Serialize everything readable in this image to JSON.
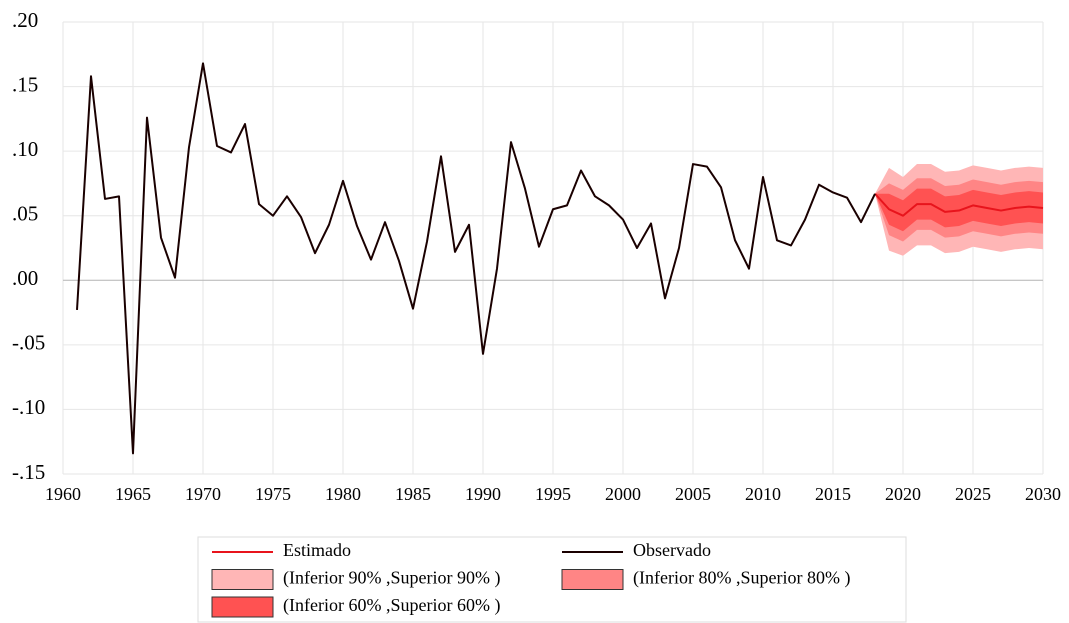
{
  "chart_data": {
    "type": "fan",
    "xlim": [
      1960,
      2030
    ],
    "xticks": [
      1960,
      1965,
      1970,
      1975,
      1980,
      1985,
      1990,
      1995,
      2000,
      2005,
      2010,
      2015,
      2020,
      2025,
      2030
    ],
    "ylim": [
      -0.15,
      0.2
    ],
    "yticks": [
      {
        "value": -0.15,
        "label": "-.15"
      },
      {
        "value": -0.1,
        "label": "-.10"
      },
      {
        "value": -0.05,
        "label": "-.05"
      },
      {
        "value": 0,
        "label": ".00"
      },
      {
        "value": 0.05,
        "label": ".05"
      },
      {
        "value": 0.1,
        "label": ".10"
      },
      {
        "value": 0.15,
        "label": ".15"
      },
      {
        "value": 0.2,
        "label": ".20"
      }
    ],
    "grid": true,
    "series": [
      {
        "name": "Estimado",
        "color": "#e8141c",
        "x": [
          2018,
          2019,
          2020,
          2021,
          2022,
          2023,
          2024,
          2025,
          2026,
          2027,
          2028,
          2029,
          2030
        ],
        "values": [
          0.067,
          0.055,
          0.05,
          0.059,
          0.059,
          0.053,
          0.054,
          0.058,
          0.056,
          0.054,
          0.056,
          0.057,
          0.056
        ]
      },
      {
        "name": "Observado",
        "color": "#1a0000",
        "x": [
          1961,
          1962,
          1963,
          1964,
          1965,
          1966,
          1967,
          1968,
          1969,
          1970,
          1971,
          1972,
          1973,
          1974,
          1975,
          1976,
          1977,
          1978,
          1979,
          1980,
          1981,
          1982,
          1983,
          1984,
          1985,
          1986,
          1987,
          1988,
          1989,
          1990,
          1991,
          1992,
          1993,
          1994,
          1995,
          1996,
          1997,
          1998,
          1999,
          2000,
          2001,
          2002,
          2003,
          2004,
          2005,
          2006,
          2007,
          2008,
          2009,
          2010,
          2011,
          2012,
          2013,
          2014,
          2015,
          2016,
          2017,
          2018
        ],
        "values": [
          -0.023,
          0.158,
          0.063,
          0.065,
          -0.134,
          0.126,
          0.033,
          0.002,
          0.103,
          0.168,
          0.104,
          0.099,
          0.121,
          0.059,
          0.05,
          0.065,
          0.049,
          0.021,
          0.043,
          0.077,
          0.042,
          0.016,
          0.045,
          0.015,
          -0.022,
          0.03,
          0.096,
          0.022,
          0.043,
          -0.057,
          0.009,
          0.107,
          0.071,
          0.026,
          0.055,
          0.058,
          0.085,
          0.065,
          0.058,
          0.047,
          0.025,
          0.044,
          -0.014,
          0.025,
          0.09,
          0.088,
          0.072,
          0.031,
          0.009,
          0.08,
          0.031,
          0.027,
          0.047,
          0.074,
          0.068,
          0.064,
          0.045,
          0.067
        ]
      }
    ],
    "bands": [
      {
        "name": "(Inferior 90% ,Superior 90% )",
        "color": "#ffb6b6",
        "x": [
          2018,
          2019,
          2020,
          2021,
          2022,
          2023,
          2024,
          2025,
          2026,
          2027,
          2028,
          2029,
          2030
        ],
        "lower": [
          0.067,
          0.023,
          0.019,
          0.027,
          0.027,
          0.021,
          0.022,
          0.026,
          0.024,
          0.022,
          0.024,
          0.025,
          0.024
        ],
        "upper": [
          0.067,
          0.087,
          0.08,
          0.09,
          0.09,
          0.084,
          0.085,
          0.089,
          0.087,
          0.085,
          0.087,
          0.088,
          0.087
        ]
      },
      {
        "name": "(Inferior 80% ,Superior 80% )",
        "color": "#ff8585",
        "x": [
          2018,
          2019,
          2020,
          2021,
          2022,
          2023,
          2024,
          2025,
          2026,
          2027,
          2028,
          2029,
          2030
        ],
        "lower": [
          0.067,
          0.035,
          0.03,
          0.039,
          0.039,
          0.033,
          0.034,
          0.038,
          0.036,
          0.034,
          0.036,
          0.037,
          0.036
        ],
        "upper": [
          0.067,
          0.075,
          0.07,
          0.079,
          0.079,
          0.073,
          0.074,
          0.078,
          0.076,
          0.074,
          0.076,
          0.077,
          0.076
        ]
      },
      {
        "name": "(Inferior 60% ,Superior 60% )",
        "color": "#ff5252",
        "x": [
          2018,
          2019,
          2020,
          2021,
          2022,
          2023,
          2024,
          2025,
          2026,
          2027,
          2028,
          2029,
          2030
        ],
        "lower": [
          0.067,
          0.043,
          0.038,
          0.047,
          0.047,
          0.041,
          0.042,
          0.046,
          0.044,
          0.042,
          0.044,
          0.045,
          0.044
        ],
        "upper": [
          0.067,
          0.067,
          0.062,
          0.071,
          0.071,
          0.065,
          0.066,
          0.07,
          0.068,
          0.066,
          0.068,
          0.069,
          0.068
        ]
      }
    ]
  }
}
